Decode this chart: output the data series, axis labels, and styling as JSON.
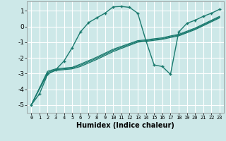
{
  "xlabel": "Humidex (Indice chaleur)",
  "background_color": "#cde8e8",
  "grid_color": "#ffffff",
  "line_color": "#1a7a6e",
  "xlim": [
    -0.5,
    23.5
  ],
  "ylim": [
    -5.5,
    1.6
  ],
  "yticks": [
    -5,
    -4,
    -3,
    -2,
    -1,
    0,
    1
  ],
  "xticks": [
    0,
    1,
    2,
    3,
    4,
    5,
    6,
    7,
    8,
    9,
    10,
    11,
    12,
    13,
    14,
    15,
    16,
    17,
    18,
    19,
    20,
    21,
    22,
    23
  ],
  "line1_x": [
    0,
    1,
    2,
    3,
    4,
    5,
    6,
    7,
    8,
    9,
    10,
    11,
    12,
    13,
    14,
    15,
    16,
    17,
    18,
    19,
    20,
    21,
    22,
    23
  ],
  "line1_y": [
    -5.0,
    -4.3,
    -3.05,
    -2.75,
    -2.2,
    -1.35,
    -0.35,
    0.25,
    0.55,
    0.85,
    1.25,
    1.28,
    1.22,
    0.85,
    -0.9,
    -2.45,
    -2.55,
    -3.05,
    -0.35,
    0.2,
    0.4,
    0.65,
    0.85,
    1.1
  ],
  "line2_x": [
    0,
    2,
    3,
    5,
    6,
    8,
    9,
    10,
    13,
    14,
    15,
    16,
    17,
    18,
    19,
    20,
    21,
    22,
    23
  ],
  "line2_y": [
    -5.0,
    -2.85,
    -2.7,
    -2.6,
    -2.4,
    -1.95,
    -1.7,
    -1.45,
    -0.9,
    -0.85,
    -0.78,
    -0.72,
    -0.6,
    -0.5,
    -0.3,
    -0.1,
    0.15,
    0.4,
    0.65
  ],
  "line3_x": [
    0,
    2,
    3,
    5,
    6,
    8,
    9,
    10,
    13,
    14,
    15,
    16,
    17,
    18,
    19,
    20,
    21,
    22,
    23
  ],
  "line3_y": [
    -5.0,
    -3.0,
    -2.8,
    -2.7,
    -2.55,
    -2.1,
    -1.85,
    -1.6,
    -1.0,
    -0.95,
    -0.88,
    -0.82,
    -0.7,
    -0.6,
    -0.4,
    -0.2,
    0.05,
    0.3,
    0.55
  ],
  "line4_x": [
    0,
    2,
    3,
    5,
    6,
    8,
    9,
    10,
    13,
    14,
    15,
    16,
    17,
    18,
    19,
    20,
    21,
    22,
    23
  ],
  "line4_y": [
    -5.0,
    -2.92,
    -2.75,
    -2.65,
    -2.47,
    -2.02,
    -1.77,
    -1.52,
    -0.95,
    -0.9,
    -0.83,
    -0.77,
    -0.65,
    -0.55,
    -0.35,
    -0.15,
    0.1,
    0.35,
    0.6
  ]
}
